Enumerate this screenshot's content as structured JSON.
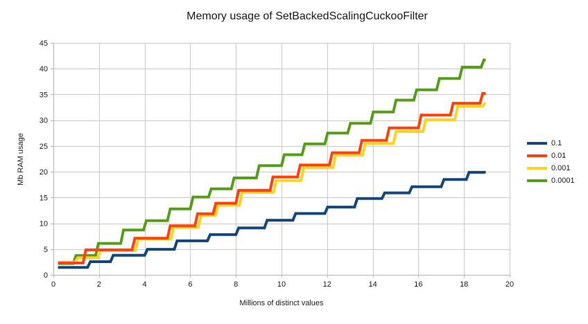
{
  "chart_data": {
    "type": "line",
    "step": true,
    "title": "Memory usage of SetBackedScalingCuckooFilter",
    "xlabel": "Millions of distinct values",
    "ylabel": "Mb RAM usage",
    "xlim": [
      0,
      20
    ],
    "ylim": [
      0,
      45
    ],
    "x_ticks": [
      0,
      2,
      4,
      6,
      8,
      10,
      12,
      14,
      16,
      18,
      20
    ],
    "y_ticks": [
      0,
      5,
      10,
      15,
      20,
      25,
      30,
      35,
      40,
      45
    ],
    "grid": true,
    "legend_position": "right",
    "line_start_x": 0.2,
    "line_end_x": 18.95,
    "series": [
      {
        "name": "0.1",
        "color": "#15477D",
        "steps": [
          [
            0.2,
            1.45
          ],
          [
            1.5,
            2.55
          ],
          [
            2.5,
            3.8
          ],
          [
            4.0,
            4.95
          ],
          [
            5.3,
            6.6
          ],
          [
            6.75,
            7.8
          ],
          [
            8.0,
            9.1
          ],
          [
            9.25,
            10.6
          ],
          [
            10.5,
            11.9
          ],
          [
            11.9,
            13.15
          ],
          [
            13.2,
            14.8
          ],
          [
            14.4,
            15.9
          ],
          [
            15.6,
            17.1
          ],
          [
            17.0,
            18.5
          ],
          [
            18.1,
            19.9
          ]
        ]
      },
      {
        "name": "0.01",
        "color": "#FF420E",
        "steps": [
          [
            0.2,
            2.3
          ],
          [
            1.3,
            4.85
          ],
          [
            3.45,
            7.1
          ],
          [
            5.0,
            9.5
          ],
          [
            6.2,
            11.85
          ],
          [
            7.0,
            13.9
          ],
          [
            8.0,
            16.4
          ],
          [
            9.5,
            19.0
          ],
          [
            10.7,
            21.3
          ],
          [
            12.1,
            23.7
          ],
          [
            13.4,
            26.1
          ],
          [
            14.6,
            28.5
          ],
          [
            16.0,
            31.0
          ],
          [
            17.4,
            33.3
          ],
          [
            18.7,
            35.2
          ]
        ]
      },
      {
        "name": "0.001",
        "color": "#FFD320",
        "steps": [
          [
            0.2,
            2.45
          ],
          [
            0.95,
            3.3
          ],
          [
            1.95,
            4.75
          ],
          [
            3.6,
            6.95
          ],
          [
            5.15,
            9.2
          ],
          [
            6.35,
            11.55
          ],
          [
            7.1,
            13.5
          ],
          [
            8.15,
            16.0
          ],
          [
            9.65,
            18.3
          ],
          [
            10.85,
            20.8
          ],
          [
            12.25,
            23.2
          ],
          [
            13.55,
            25.5
          ],
          [
            14.9,
            27.8
          ],
          [
            16.2,
            30.1
          ],
          [
            17.6,
            32.7
          ],
          [
            18.8,
            33.2
          ]
        ]
      },
      {
        "name": "0.0001",
        "color": "#579D1C",
        "steps": [
          [
            0.2,
            2.2
          ],
          [
            0.87,
            3.75
          ],
          [
            1.85,
            6.1
          ],
          [
            2.95,
            8.7
          ],
          [
            3.95,
            10.5
          ],
          [
            5.0,
            12.8
          ],
          [
            6.0,
            15.1
          ],
          [
            6.8,
            16.7
          ],
          [
            7.8,
            18.8
          ],
          [
            8.9,
            21.2
          ],
          [
            10.0,
            23.3
          ],
          [
            10.9,
            25.4
          ],
          [
            11.9,
            27.5
          ],
          [
            12.9,
            29.4
          ],
          [
            13.9,
            31.6
          ],
          [
            14.9,
            33.9
          ],
          [
            15.8,
            35.9
          ],
          [
            16.8,
            38.1
          ],
          [
            17.8,
            40.3
          ],
          [
            18.75,
            41.7
          ]
        ]
      }
    ],
    "colors": {
      "grid": "#C9C9C9",
      "axis": "#B3B3B3",
      "text": "#1A1A1A",
      "background": "#FFFFFF"
    }
  }
}
